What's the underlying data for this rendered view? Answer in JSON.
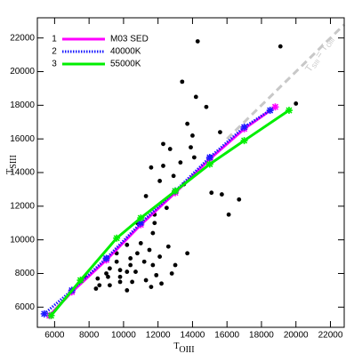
{
  "chart_data": {
    "type": "line",
    "xlabel": {
      "main": "T",
      "sub": "OIII"
    },
    "ylabel": {
      "main": "T",
      "sub": "SIII"
    },
    "annotation": {
      "parts": [
        "T",
        "SIII",
        "= T",
        "OIII"
      ],
      "color": "#c8c8c8"
    },
    "xlim": [
      5000,
      22800
    ],
    "ylim": [
      4800,
      23200
    ],
    "xticks": [
      6000,
      8000,
      10000,
      12000,
      14000,
      16000,
      18000,
      20000,
      22000
    ],
    "yticks": [
      6000,
      8000,
      10000,
      12000,
      14000,
      16000,
      18000,
      20000,
      22000
    ],
    "legend": "upper left",
    "identity_line": {
      "x": [
        16000,
        22800
      ],
      "values": [
        16000,
        22800
      ],
      "color": "#c8c8c8"
    },
    "series": [
      {
        "name": "M03 SED",
        "number": "1",
        "color": "#ff00ff",
        "style": "solid",
        "x": [
          5700,
          7000,
          9000,
          11000,
          13000,
          15000,
          17000,
          18800
        ],
        "values": [
          5500,
          6900,
          8800,
          10900,
          12800,
          14800,
          16600,
          17900
        ]
      },
      {
        "name": "40000K",
        "number": "2",
        "color": "#1a1aff",
        "style": "dotted",
        "x": [
          5400,
          7000,
          9000,
          11000,
          13000,
          15000,
          17000,
          18500
        ],
        "values": [
          5600,
          7000,
          8900,
          11000,
          12900,
          14900,
          16700,
          17700
        ]
      },
      {
        "name": "55000K",
        "number": "3",
        "color": "#00ee00",
        "style": "solid",
        "x": [
          5800,
          7500,
          9600,
          11000,
          13000,
          15000,
          17000,
          19600
        ],
        "values": [
          5500,
          7600,
          10100,
          11300,
          12900,
          14500,
          15900,
          17700
        ]
      }
    ],
    "scatter": {
      "color": "#000000",
      "x": [
        14300,
        19100,
        20000,
        13400,
        14200,
        14800,
        13700,
        15600,
        14000,
        12300,
        13900,
        12700,
        14100,
        12300,
        11600,
        13300,
        12900,
        12100,
        13500,
        15100,
        15700,
        16700,
        16100,
        12500,
        11300,
        11800,
        10800,
        11800,
        11700,
        11000,
        10200,
        10800,
        11500,
        12600,
        12100,
        13700,
        13000,
        11700,
        10400,
        9600,
        9200,
        9800,
        10200,
        10700,
        11200,
        10400,
        9600,
        9000,
        8500,
        8600,
        9100,
        9800,
        10500,
        11300,
        11900,
        12200,
        11600,
        10200,
        9200,
        8400,
        7800,
        7600,
        9800,
        12800
      ],
      "values": [
        21800,
        21500,
        18100,
        19400,
        18500,
        17900,
        16900,
        16400,
        16200,
        15700,
        15500,
        15400,
        14900,
        14400,
        14300,
        14600,
        13800,
        13500,
        13300,
        12800,
        12700,
        12400,
        11500,
        11900,
        12600,
        11500,
        11000,
        11000,
        10400,
        9800,
        9700,
        9200,
        9400,
        9600,
        9000,
        9200,
        8500,
        8500,
        8900,
        9200,
        8300,
        8200,
        8100,
        8100,
        8700,
        8500,
        8700,
        8000,
        7700,
        7300,
        7800,
        7500,
        7500,
        7600,
        7900,
        7400,
        7200,
        7000,
        7300,
        7100,
        7800,
        7600,
        7800,
        8000
      ]
    }
  }
}
